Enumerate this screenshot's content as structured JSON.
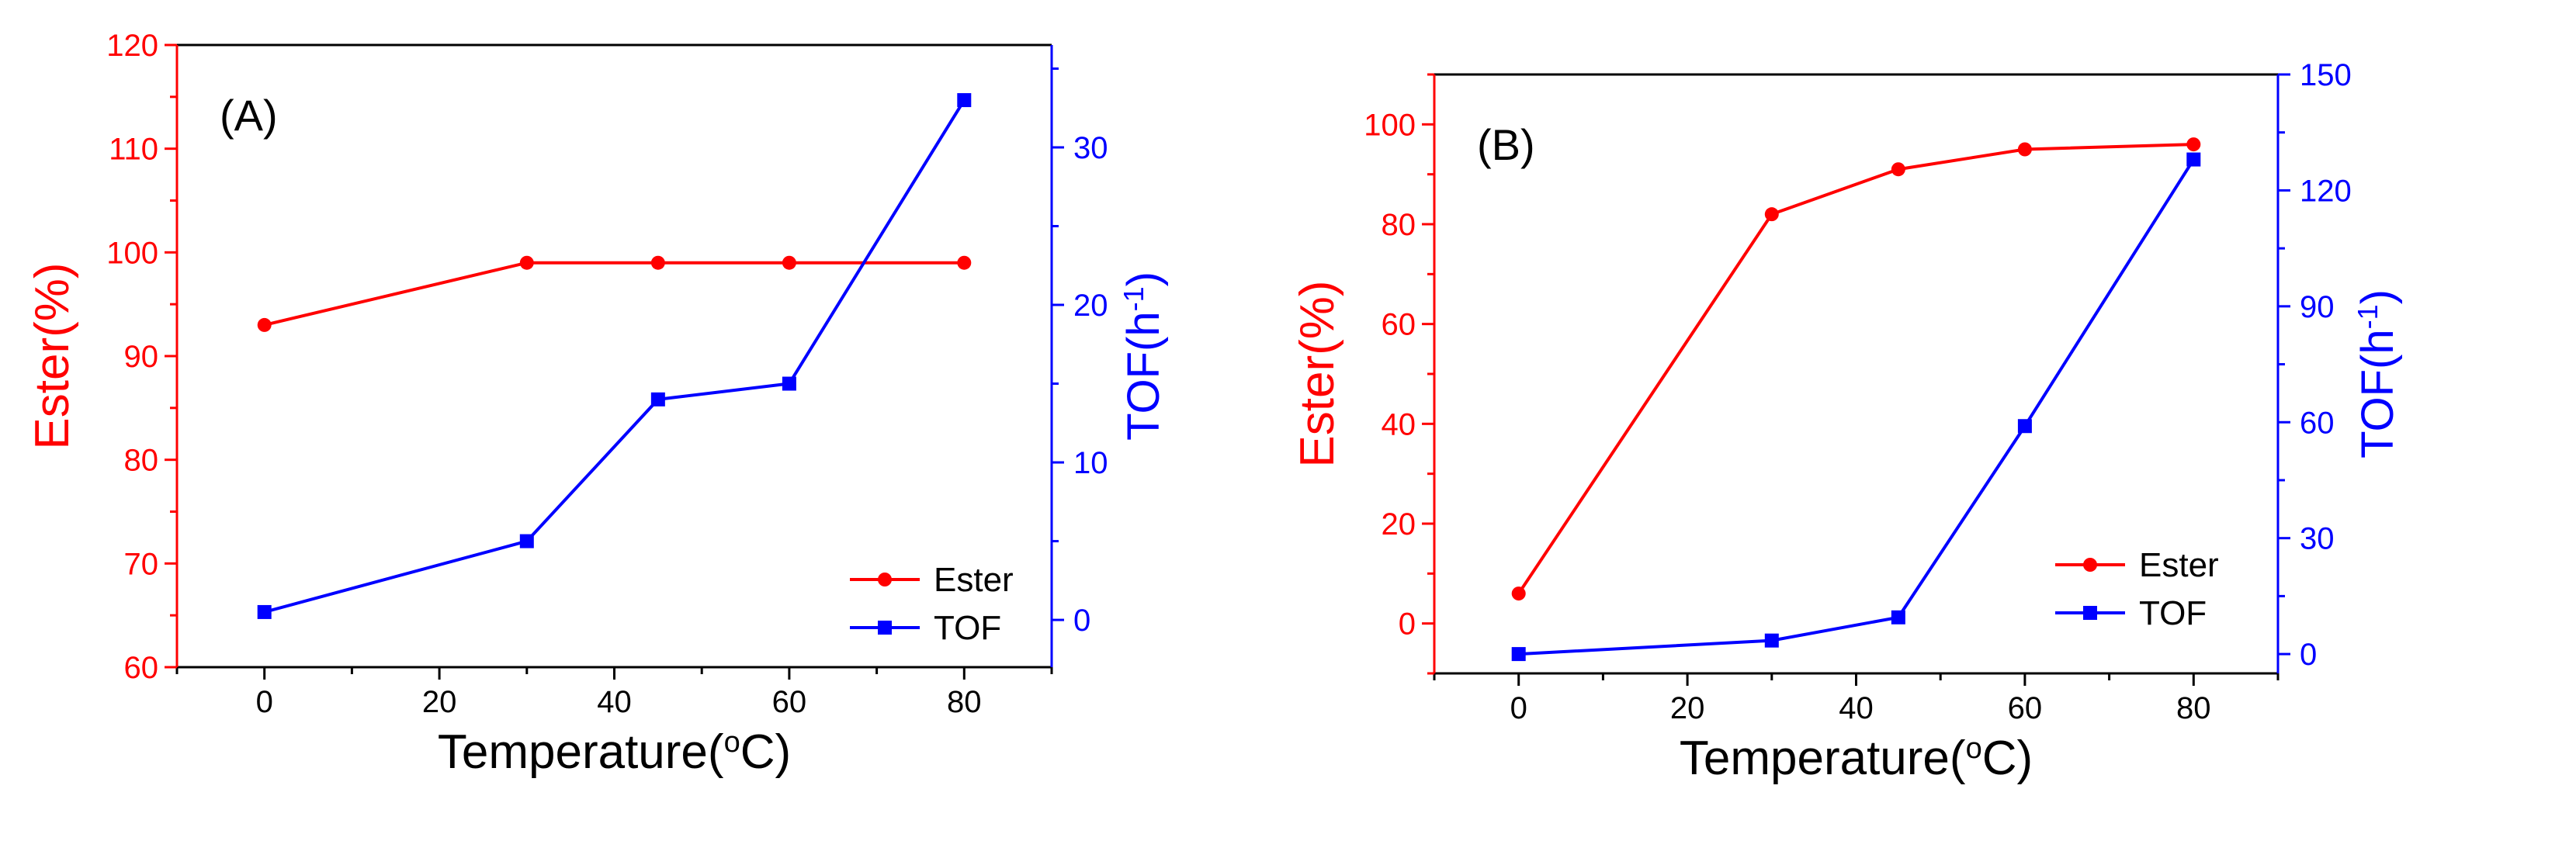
{
  "colors": {
    "ester": "#ff0000",
    "tof": "#0000ff",
    "axis": "#000000"
  },
  "chart_data": [
    {
      "type": "line",
      "panel_label": "(A)",
      "xlabel": "Temperature(",
      "xlabel_unit_sup": "o",
      "xlabel_unit_tail": "C)",
      "ylabel_left": "Ester(%)",
      "ylabel_right": "TOF(h",
      "ylabel_right_sup": "-1",
      "ylabel_right_tail": ")",
      "xlim": [
        -10,
        90
      ],
      "ylim_left": [
        60,
        120
      ],
      "ylim_right": [
        -3,
        36.5
      ],
      "xticks": [
        0,
        20,
        40,
        60,
        80
      ],
      "yticks_left": [
        60,
        70,
        80,
        90,
        100,
        110,
        120
      ],
      "yticks_right": [
        0,
        10,
        20,
        30
      ],
      "legend_position": "bottom-right",
      "series": [
        {
          "name": "Ester",
          "axis": "left",
          "marker": "circle",
          "x": [
            0,
            30,
            45,
            60,
            80
          ],
          "values": [
            93,
            99,
            99,
            99,
            99
          ]
        },
        {
          "name": "TOF",
          "axis": "right",
          "marker": "square",
          "x": [
            0,
            30,
            45,
            60,
            80
          ],
          "values": [
            0.5,
            5,
            14,
            15,
            33
          ]
        }
      ]
    },
    {
      "type": "line",
      "panel_label": "(B)",
      "xlabel": "Temperature(",
      "xlabel_unit_sup": "o",
      "xlabel_unit_tail": "C)",
      "ylabel_left": "Ester(%)",
      "ylabel_right": "TOF(h",
      "ylabel_right_sup": "-1",
      "ylabel_right_tail": ")",
      "xlim": [
        -10,
        90
      ],
      "ylim_left": [
        -10,
        110
      ],
      "ylim_right": [
        -5,
        150
      ],
      "xticks": [
        0,
        20,
        40,
        60,
        80
      ],
      "yticks_left": [
        0,
        20,
        40,
        60,
        80,
        100
      ],
      "yticks_right": [
        0,
        30,
        60,
        90,
        120,
        150
      ],
      "legend_position": "bottom-right",
      "series": [
        {
          "name": "Ester",
          "axis": "left",
          "marker": "circle",
          "x": [
            0,
            30,
            45,
            60,
            80
          ],
          "values": [
            6,
            82,
            91,
            95,
            96
          ]
        },
        {
          "name": "TOF",
          "axis": "right",
          "marker": "square",
          "x": [
            0,
            30,
            45,
            60,
            80
          ],
          "values": [
            0,
            3.5,
            9.5,
            59,
            128
          ]
        }
      ]
    }
  ]
}
